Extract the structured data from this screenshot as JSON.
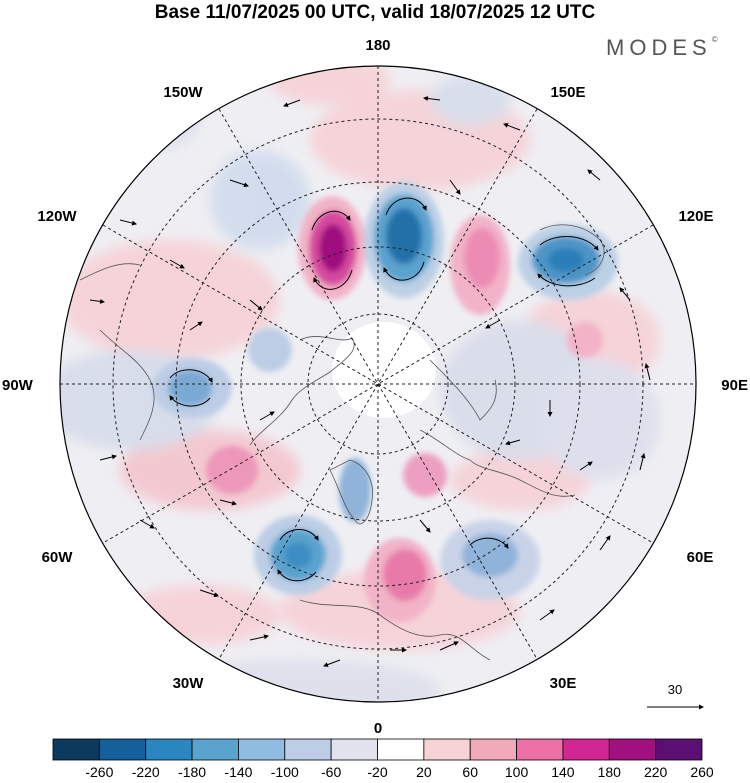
{
  "title": "Base 11/07/2025 00 UTC, valid 18/07/2025 12 UTC",
  "brand": "MODES",
  "brand_mark": "©",
  "longitude_labels": {
    "top": "180",
    "bottom": "0",
    "left": "90W",
    "right": "90E",
    "upper_left_1": "150W",
    "upper_left_2": "120W",
    "upper_right_1": "150E",
    "upper_right_2": "120E",
    "lower_left_1": "60W",
    "lower_left_2": "30W",
    "lower_right_1": "60E",
    "lower_right_2": "30E"
  },
  "vector_scale_label": "30",
  "colorbar": {
    "ticks": [
      "-260",
      "-220",
      "-180",
      "-140",
      "-100",
      "-60",
      "-20",
      "20",
      "60",
      "100",
      "140",
      "180",
      "220",
      "260"
    ],
    "colors": [
      "#0b3a5e",
      "#13609a",
      "#2a86c0",
      "#5aa3cf",
      "#8fbce0",
      "#bccde5",
      "#e2e2ef",
      "#ffffff",
      "#f7d3d6",
      "#f2a9b8",
      "#ec6fa6",
      "#d22793",
      "#a0117f",
      "#5c0f72"
    ]
  },
  "anomaly_centers": [
    {
      "sign": "positive",
      "strength": "very strong",
      "color": "#b0198a",
      "location": "near 165W, 55N"
    },
    {
      "sign": "negative",
      "strength": "strong",
      "color": "#2a7fb8",
      "location": "near 170E, 55N"
    },
    {
      "sign": "positive",
      "strength": "moderate",
      "color": "#ec8cb4",
      "location": "near 150E, 50N"
    },
    {
      "sign": "negative",
      "strength": "strong",
      "color": "#3a8dc2",
      "location": "near 125E, 50N"
    },
    {
      "sign": "negative",
      "strength": "moderate",
      "color": "#6f9fd0",
      "location": "near 90W, 50N"
    },
    {
      "sign": "negative",
      "strength": "strong",
      "color": "#3d8ec4",
      "location": "near 40W, 45N"
    },
    {
      "sign": "positive",
      "strength": "moderate",
      "color": "#e87aa9",
      "location": "near 10E, 50N"
    },
    {
      "sign": "negative",
      "strength": "moderate",
      "color": "#8fb3d9",
      "location": "near 40E, 55N"
    },
    {
      "sign": "positive",
      "strength": "moderate",
      "color": "#ec8cb4",
      "location": "near 60W, 65N"
    }
  ]
}
